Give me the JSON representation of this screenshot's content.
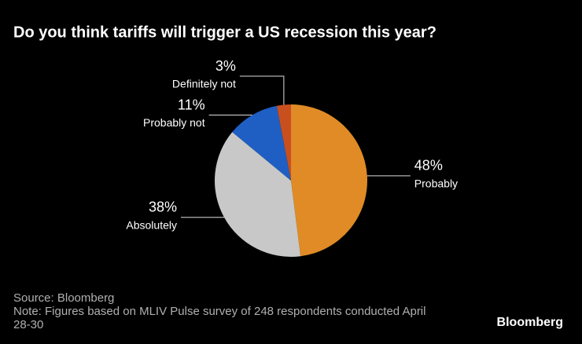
{
  "chart_data": {
    "type": "pie",
    "title": "Do you think tariffs will trigger a US recession this year?",
    "categories": [
      "Probably",
      "Absolutely",
      "Probably not",
      "Definitely not"
    ],
    "values": [
      48,
      38,
      11,
      3
    ],
    "value_labels": [
      "48%",
      "38%",
      "11%",
      "3%"
    ],
    "colors": [
      "#e08b25",
      "#c8c8c8",
      "#1f5fc4",
      "#c9501e"
    ],
    "source": "Source: Bloomberg",
    "note": "Note: Figures based on MLIV Pulse survey of 248 respondents conducted April 28-30",
    "logo": "Bloomberg"
  }
}
